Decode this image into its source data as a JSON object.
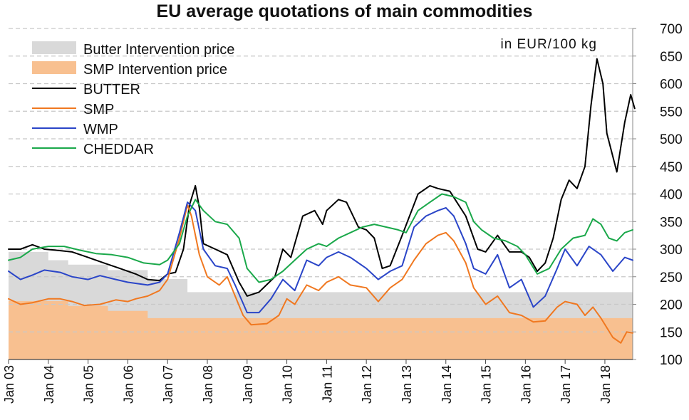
{
  "chart_data": {
    "type": "line",
    "title": "EU average quotations of main commodities",
    "unit_label": "in EUR/100 kg",
    "ylim": [
      100,
      700
    ],
    "y_ticks": [
      100,
      150,
      200,
      250,
      300,
      350,
      400,
      450,
      500,
      550,
      600,
      650,
      700
    ],
    "x_range": [
      2003.0,
      2018.7
    ],
    "x_tick_labels": [
      "Jan 03",
      "Jan 04",
      "Jan 05",
      "Jan 06",
      "Jan 07",
      "Jan 08",
      "Jan 09",
      "Jan 10",
      "Jan 11",
      "Jan 12",
      "Jan 13",
      "Jan 14",
      "Jan 15",
      "Jan 16",
      "Jan 17",
      "Jan 18"
    ],
    "x_tick_years": [
      2003,
      2004,
      2005,
      2006,
      2007,
      2008,
      2009,
      2010,
      2011,
      2012,
      2013,
      2014,
      2015,
      2016,
      2017,
      2018
    ],
    "grid": "horizontal-dashed",
    "legend_position": "top-left",
    "colors": {
      "butter_intervention": "#d9d9d9",
      "smp_intervention": "#f8c090",
      "butter": "#000000",
      "smp": "#f07820",
      "wmp": "#2a45c8",
      "cheddar": "#1aa84a",
      "grid": "#c8c8c8",
      "text": "#111111"
    },
    "areas": [
      {
        "key": "butter_intervention",
        "name": "Butter Intervention price",
        "steps": [
          [
            2003.0,
            295
          ],
          [
            2004.0,
            280
          ],
          [
            2004.5,
            272
          ],
          [
            2005.5,
            262
          ],
          [
            2006.5,
            246
          ],
          [
            2007.5,
            222
          ],
          [
            2018.7,
            222
          ]
        ]
      },
      {
        "key": "smp_intervention",
        "name": "SMP Intervention price",
        "steps": [
          [
            2003.0,
            206
          ],
          [
            2004.5,
            197
          ],
          [
            2005.5,
            188
          ],
          [
            2006.5,
            175
          ],
          [
            2018.7,
            170
          ]
        ]
      }
    ],
    "series": [
      {
        "key": "butter",
        "name": "BUTTER",
        "points": [
          [
            2003.0,
            300
          ],
          [
            2003.3,
            300
          ],
          [
            2003.6,
            308
          ],
          [
            2003.9,
            300
          ],
          [
            2004.2,
            298
          ],
          [
            2004.6,
            295
          ],
          [
            2005.0,
            285
          ],
          [
            2005.4,
            275
          ],
          [
            2005.8,
            265
          ],
          [
            2006.2,
            255
          ],
          [
            2006.5,
            245
          ],
          [
            2006.8,
            243
          ],
          [
            2007.0,
            255
          ],
          [
            2007.2,
            258
          ],
          [
            2007.4,
            300
          ],
          [
            2007.55,
            380
          ],
          [
            2007.7,
            415
          ],
          [
            2007.8,
            375
          ],
          [
            2007.9,
            310
          ],
          [
            2008.2,
            300
          ],
          [
            2008.5,
            290
          ],
          [
            2008.8,
            240
          ],
          [
            2009.0,
            215
          ],
          [
            2009.3,
            222
          ],
          [
            2009.7,
            250
          ],
          [
            2009.9,
            300
          ],
          [
            2010.1,
            285
          ],
          [
            2010.4,
            360
          ],
          [
            2010.7,
            370
          ],
          [
            2010.9,
            345
          ],
          [
            2011.0,
            370
          ],
          [
            2011.3,
            390
          ],
          [
            2011.5,
            385
          ],
          [
            2011.8,
            340
          ],
          [
            2012.0,
            335
          ],
          [
            2012.2,
            320
          ],
          [
            2012.4,
            265
          ],
          [
            2012.6,
            270
          ],
          [
            2012.9,
            325
          ],
          [
            2013.3,
            400
          ],
          [
            2013.6,
            415
          ],
          [
            2013.8,
            410
          ],
          [
            2014.1,
            405
          ],
          [
            2014.5,
            360
          ],
          [
            2014.8,
            300
          ],
          [
            2015.0,
            295
          ],
          [
            2015.3,
            325
          ],
          [
            2015.6,
            295
          ],
          [
            2015.9,
            295
          ],
          [
            2016.1,
            285
          ],
          [
            2016.3,
            260
          ],
          [
            2016.5,
            275
          ],
          [
            2016.7,
            320
          ],
          [
            2016.9,
            390
          ],
          [
            2017.1,
            425
          ],
          [
            2017.3,
            410
          ],
          [
            2017.5,
            450
          ],
          [
            2017.65,
            560
          ],
          [
            2017.8,
            645
          ],
          [
            2017.95,
            600
          ],
          [
            2018.05,
            510
          ],
          [
            2018.3,
            440
          ],
          [
            2018.5,
            530
          ],
          [
            2018.65,
            580
          ],
          [
            2018.75,
            555
          ]
        ]
      },
      {
        "key": "smp",
        "name": "SMP",
        "points": [
          [
            2003.0,
            210
          ],
          [
            2003.3,
            200
          ],
          [
            2003.6,
            203
          ],
          [
            2004.0,
            210
          ],
          [
            2004.3,
            210
          ],
          [
            2004.6,
            205
          ],
          [
            2004.9,
            198
          ],
          [
            2005.3,
            200
          ],
          [
            2005.7,
            208
          ],
          [
            2006.0,
            205
          ],
          [
            2006.2,
            210
          ],
          [
            2006.5,
            215
          ],
          [
            2006.8,
            225
          ],
          [
            2007.0,
            245
          ],
          [
            2007.3,
            320
          ],
          [
            2007.5,
            380
          ],
          [
            2007.6,
            360
          ],
          [
            2007.8,
            290
          ],
          [
            2008.0,
            250
          ],
          [
            2008.3,
            235
          ],
          [
            2008.5,
            250
          ],
          [
            2008.7,
            215
          ],
          [
            2008.9,
            180
          ],
          [
            2009.1,
            163
          ],
          [
            2009.5,
            165
          ],
          [
            2009.8,
            180
          ],
          [
            2010.0,
            210
          ],
          [
            2010.2,
            200
          ],
          [
            2010.5,
            235
          ],
          [
            2010.8,
            225
          ],
          [
            2011.0,
            240
          ],
          [
            2011.3,
            250
          ],
          [
            2011.6,
            235
          ],
          [
            2012.0,
            230
          ],
          [
            2012.3,
            205
          ],
          [
            2012.6,
            230
          ],
          [
            2012.9,
            245
          ],
          [
            2013.2,
            280
          ],
          [
            2013.5,
            310
          ],
          [
            2013.8,
            325
          ],
          [
            2014.0,
            330
          ],
          [
            2014.2,
            315
          ],
          [
            2014.5,
            275
          ],
          [
            2014.7,
            230
          ],
          [
            2015.0,
            200
          ],
          [
            2015.3,
            215
          ],
          [
            2015.6,
            185
          ],
          [
            2015.9,
            180
          ],
          [
            2016.2,
            168
          ],
          [
            2016.5,
            170
          ],
          [
            2016.8,
            195
          ],
          [
            2017.0,
            205
          ],
          [
            2017.3,
            200
          ],
          [
            2017.5,
            180
          ],
          [
            2017.7,
            195
          ],
          [
            2017.9,
            175
          ],
          [
            2018.2,
            140
          ],
          [
            2018.4,
            130
          ],
          [
            2018.55,
            150
          ],
          [
            2018.7,
            148
          ]
        ]
      },
      {
        "key": "wmp",
        "name": "WMP",
        "points": [
          [
            2003.0,
            260
          ],
          [
            2003.3,
            245
          ],
          [
            2003.6,
            253
          ],
          [
            2003.9,
            262
          ],
          [
            2004.3,
            258
          ],
          [
            2004.6,
            250
          ],
          [
            2005.0,
            245
          ],
          [
            2005.3,
            252
          ],
          [
            2005.7,
            245
          ],
          [
            2006.0,
            240
          ],
          [
            2006.5,
            235
          ],
          [
            2006.8,
            240
          ],
          [
            2007.0,
            255
          ],
          [
            2007.3,
            330
          ],
          [
            2007.5,
            385
          ],
          [
            2007.7,
            370
          ],
          [
            2007.9,
            300
          ],
          [
            2008.2,
            270
          ],
          [
            2008.5,
            265
          ],
          [
            2008.7,
            235
          ],
          [
            2009.0,
            185
          ],
          [
            2009.3,
            185
          ],
          [
            2009.6,
            210
          ],
          [
            2009.9,
            245
          ],
          [
            2010.2,
            225
          ],
          [
            2010.5,
            280
          ],
          [
            2010.8,
            270
          ],
          [
            2011.0,
            285
          ],
          [
            2011.3,
            295
          ],
          [
            2011.6,
            285
          ],
          [
            2012.0,
            265
          ],
          [
            2012.3,
            245
          ],
          [
            2012.6,
            260
          ],
          [
            2012.9,
            270
          ],
          [
            2013.2,
            340
          ],
          [
            2013.5,
            360
          ],
          [
            2013.8,
            370
          ],
          [
            2014.0,
            375
          ],
          [
            2014.2,
            360
          ],
          [
            2014.5,
            310
          ],
          [
            2014.7,
            265
          ],
          [
            2015.0,
            255
          ],
          [
            2015.3,
            290
          ],
          [
            2015.6,
            230
          ],
          [
            2015.9,
            245
          ],
          [
            2016.2,
            195
          ],
          [
            2016.5,
            215
          ],
          [
            2016.8,
            265
          ],
          [
            2017.0,
            300
          ],
          [
            2017.3,
            270
          ],
          [
            2017.6,
            305
          ],
          [
            2017.9,
            290
          ],
          [
            2018.2,
            260
          ],
          [
            2018.5,
            285
          ],
          [
            2018.7,
            280
          ]
        ]
      },
      {
        "key": "cheddar",
        "name": "CHEDDAR",
        "points": [
          [
            2003.0,
            280
          ],
          [
            2003.3,
            285
          ],
          [
            2003.6,
            300
          ],
          [
            2004.0,
            305
          ],
          [
            2004.4,
            305
          ],
          [
            2004.8,
            298
          ],
          [
            2005.2,
            292
          ],
          [
            2005.6,
            290
          ],
          [
            2006.0,
            285
          ],
          [
            2006.4,
            275
          ],
          [
            2006.8,
            272
          ],
          [
            2007.0,
            280
          ],
          [
            2007.3,
            310
          ],
          [
            2007.5,
            360
          ],
          [
            2007.7,
            390
          ],
          [
            2007.9,
            370
          ],
          [
            2008.2,
            350
          ],
          [
            2008.5,
            345
          ],
          [
            2008.8,
            320
          ],
          [
            2009.0,
            265
          ],
          [
            2009.3,
            240
          ],
          [
            2009.6,
            245
          ],
          [
            2009.9,
            260
          ],
          [
            2010.2,
            280
          ],
          [
            2010.5,
            300
          ],
          [
            2010.8,
            310
          ],
          [
            2011.0,
            305
          ],
          [
            2011.3,
            320
          ],
          [
            2011.6,
            330
          ],
          [
            2011.9,
            340
          ],
          [
            2012.2,
            345
          ],
          [
            2012.5,
            340
          ],
          [
            2012.8,
            335
          ],
          [
            2013.0,
            330
          ],
          [
            2013.3,
            370
          ],
          [
            2013.6,
            385
          ],
          [
            2013.9,
            400
          ],
          [
            2014.2,
            395
          ],
          [
            2014.5,
            385
          ],
          [
            2014.7,
            350
          ],
          [
            2014.9,
            335
          ],
          [
            2015.2,
            320
          ],
          [
            2015.5,
            315
          ],
          [
            2015.8,
            305
          ],
          [
            2016.0,
            290
          ],
          [
            2016.3,
            255
          ],
          [
            2016.6,
            265
          ],
          [
            2016.9,
            300
          ],
          [
            2017.2,
            320
          ],
          [
            2017.5,
            325
          ],
          [
            2017.7,
            355
          ],
          [
            2017.9,
            345
          ],
          [
            2018.1,
            320
          ],
          [
            2018.3,
            315
          ],
          [
            2018.5,
            330
          ],
          [
            2018.7,
            335
          ]
        ]
      }
    ]
  }
}
